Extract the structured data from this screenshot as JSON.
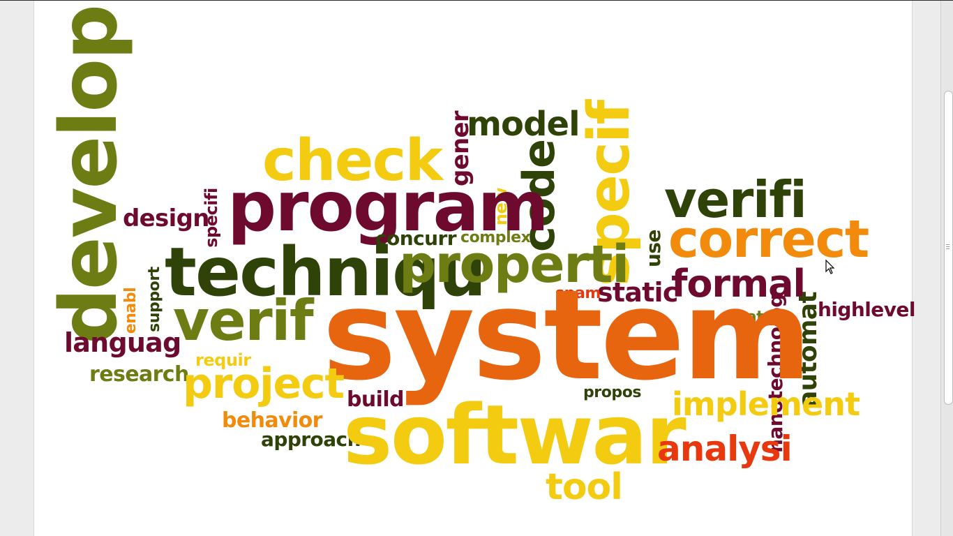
{
  "colors": {
    "dark_green": "#2f4208",
    "olive": "#6e7c14",
    "maroon": "#6e0a2e",
    "orange": "#e86510",
    "amber": "#f28a0c",
    "yellow": "#f3cc12",
    "red": "#e8380e"
  },
  "cloud": {
    "words": [
      "develop",
      "system",
      "softwar",
      "program",
      "techniqu",
      "properti",
      "check",
      "verifi",
      "correct",
      "specif",
      "verif",
      "code",
      "project",
      "implement",
      "analysi",
      "formal",
      "tool",
      "static",
      "model",
      "gener",
      "automat",
      "nanotechnolog",
      "languag",
      "design",
      "research",
      "behavior",
      "approach",
      "build",
      "concurr",
      "requir",
      "highlevel",
      "new",
      "specifi",
      "use",
      "support",
      "enabl",
      "complex",
      "spam",
      "state",
      "propos"
    ]
  },
  "cursor_icon": "arrow-pointer-icon"
}
